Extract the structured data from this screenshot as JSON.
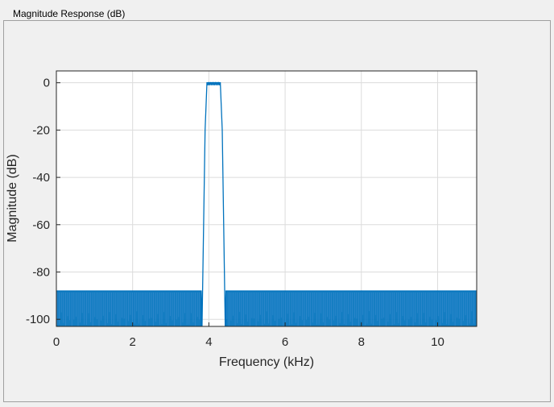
{
  "window": {
    "panel_title": "Magnitude Response (dB)"
  },
  "colors": {
    "line": "#0072bd",
    "grid": "#dcdcdc",
    "axis": "#262626",
    "panel_bg": "#f0f0f0",
    "plot_bg": "#ffffff"
  },
  "chart_data": {
    "type": "line",
    "title": "",
    "xlabel": "Frequency (kHz)",
    "ylabel": "Magnitude (dB)",
    "xlim": [
      0,
      11.025
    ],
    "ylim": [
      -103,
      5
    ],
    "grid": true,
    "x_ticks": [
      0,
      2,
      4,
      6,
      8,
      10
    ],
    "y_ticks": [
      0,
      -20,
      -40,
      -60,
      -80,
      -100
    ],
    "x_tick_labels": [
      "0",
      "2",
      "4",
      "6",
      "8",
      "10"
    ],
    "y_tick_labels": [
      "0",
      "-20",
      "-40",
      "-60",
      "-80",
      "-100"
    ],
    "series": [
      {
        "stopband_ripple_top_db": -88,
        "stopband_ripple_bottom_db": -103,
        "stopband_edges_khz": [
          3.8,
          4.45
        ],
        "passband_khz": [
          3.95,
          4.3
        ],
        "passband_db": 0,
        "x": [
          0,
          3.8,
          3.82,
          3.9,
          3.95,
          4.1,
          4.3,
          4.35,
          4.43,
          4.45,
          11.025
        ],
        "y": [
          -88,
          -88,
          -103,
          -20,
          0,
          0,
          0,
          -20,
          -103,
          -88,
          -88
        ]
      }
    ]
  }
}
